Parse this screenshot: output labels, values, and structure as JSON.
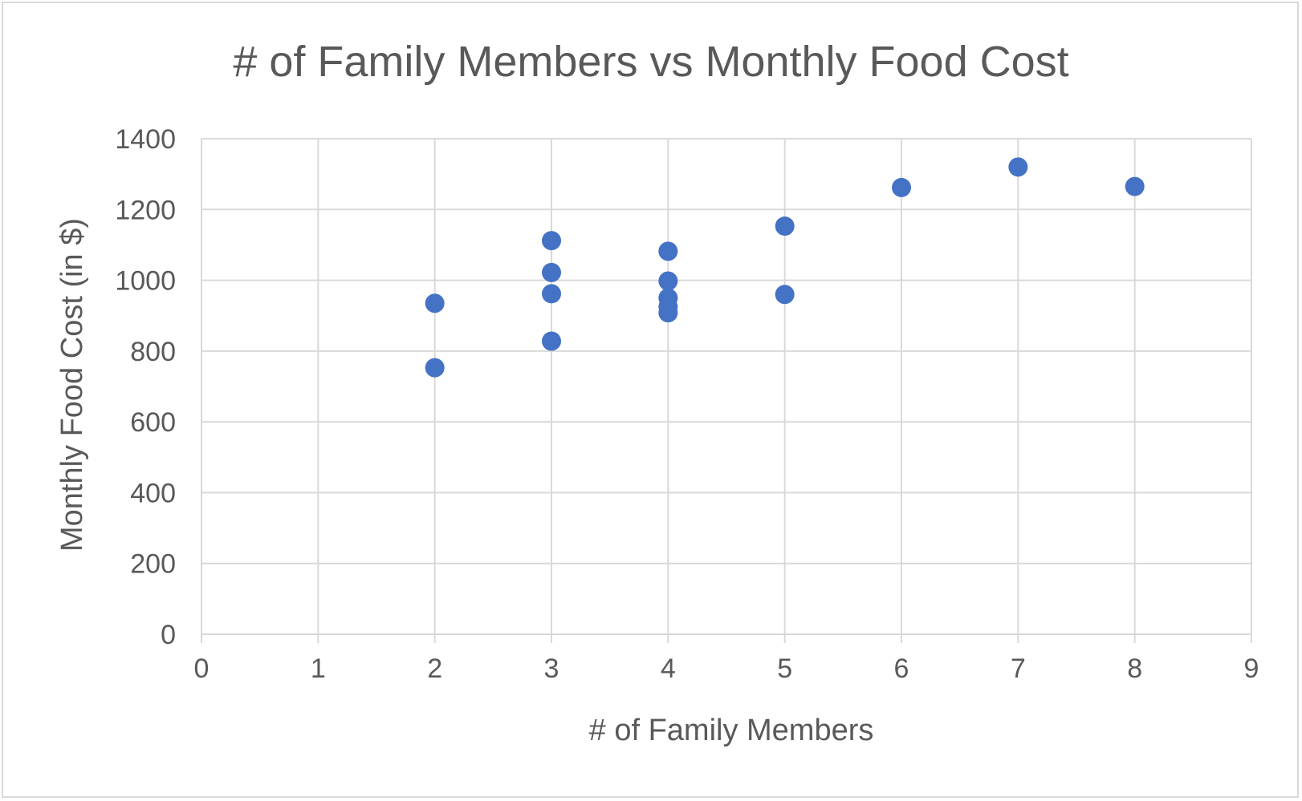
{
  "chart_data": {
    "type": "scatter",
    "title": "# of Family Members vs Monthly Food Cost",
    "xlabel": "# of Family Members",
    "ylabel": "Monthly Food Cost (in $)",
    "xlim": [
      0,
      9
    ],
    "ylim": [
      0,
      1400
    ],
    "xticks": [
      0,
      1,
      2,
      3,
      4,
      5,
      6,
      7,
      8,
      9
    ],
    "yticks": [
      0,
      200,
      400,
      600,
      800,
      1000,
      1200,
      1400
    ],
    "grid": true,
    "legend": "none",
    "marker_color": "#4472c4",
    "points": [
      {
        "x": 2,
        "y": 935
      },
      {
        "x": 2,
        "y": 753
      },
      {
        "x": 3,
        "y": 1112
      },
      {
        "x": 3,
        "y": 1022
      },
      {
        "x": 3,
        "y": 962
      },
      {
        "x": 3,
        "y": 828
      },
      {
        "x": 4,
        "y": 1082
      },
      {
        "x": 4,
        "y": 998
      },
      {
        "x": 4,
        "y": 950
      },
      {
        "x": 4,
        "y": 925
      },
      {
        "x": 4,
        "y": 908
      },
      {
        "x": 5,
        "y": 1153
      },
      {
        "x": 5,
        "y": 960
      },
      {
        "x": 6,
        "y": 1262
      },
      {
        "x": 7,
        "y": 1320
      },
      {
        "x": 8,
        "y": 1265
      }
    ]
  }
}
